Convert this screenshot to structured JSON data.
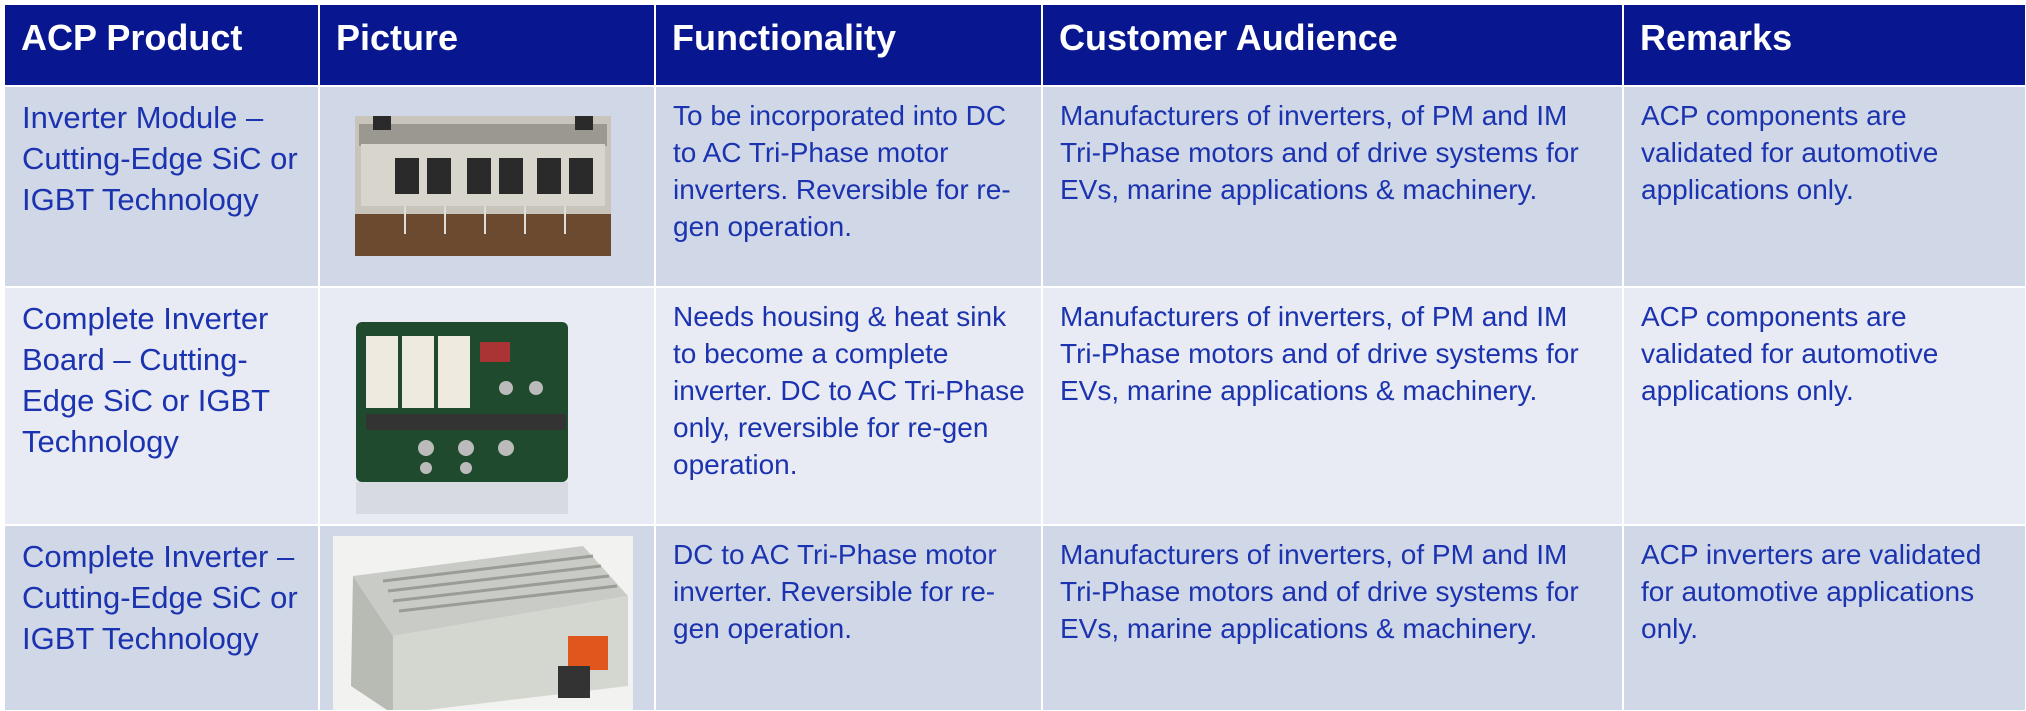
{
  "table": {
    "header": [
      "ACP Product",
      "Picture",
      "Functionality",
      "Customer Audience",
      "Remarks"
    ],
    "rows": [
      {
        "product": "Inverter Module – Cutting-Edge SiC or IGBT Technology",
        "functionality": "To be incorporated into DC to AC Tri-Phase motor inverters. Reversible for re-gen operation.",
        "audience": "Manufacturers of inverters, of PM and IM Tri-Phase motors and of drive systems for EVs, marine applications & machinery.",
        "remarks": "ACP components are validated for automotive applications only."
      },
      {
        "product": "Complete Inverter Board – Cutting-Edge SiC or IGBT Technology",
        "functionality": "Needs housing & heat sink to become a complete inverter. DC to AC Tri-Phase only, reversible for re-gen operation.",
        "audience": "Manufacturers of inverters, of PM and IM Tri-Phase motors and of drive systems for EVs, marine applications & machinery.",
        "remarks": "ACP components are validated for automotive applications only."
      },
      {
        "product": "Complete Inverter – Cutting-Edge SiC or IGBT Technology",
        "functionality": "DC to AC Tri-Phase motor inverter. Reversible for re-gen operation.",
        "audience": "Manufacturers of inverters, of PM and IM Tri-Phase motors and of drive systems for EVs, marine applications & machinery.",
        "remarks": "ACP inverters are validated for automotive applications only."
      }
    ]
  }
}
